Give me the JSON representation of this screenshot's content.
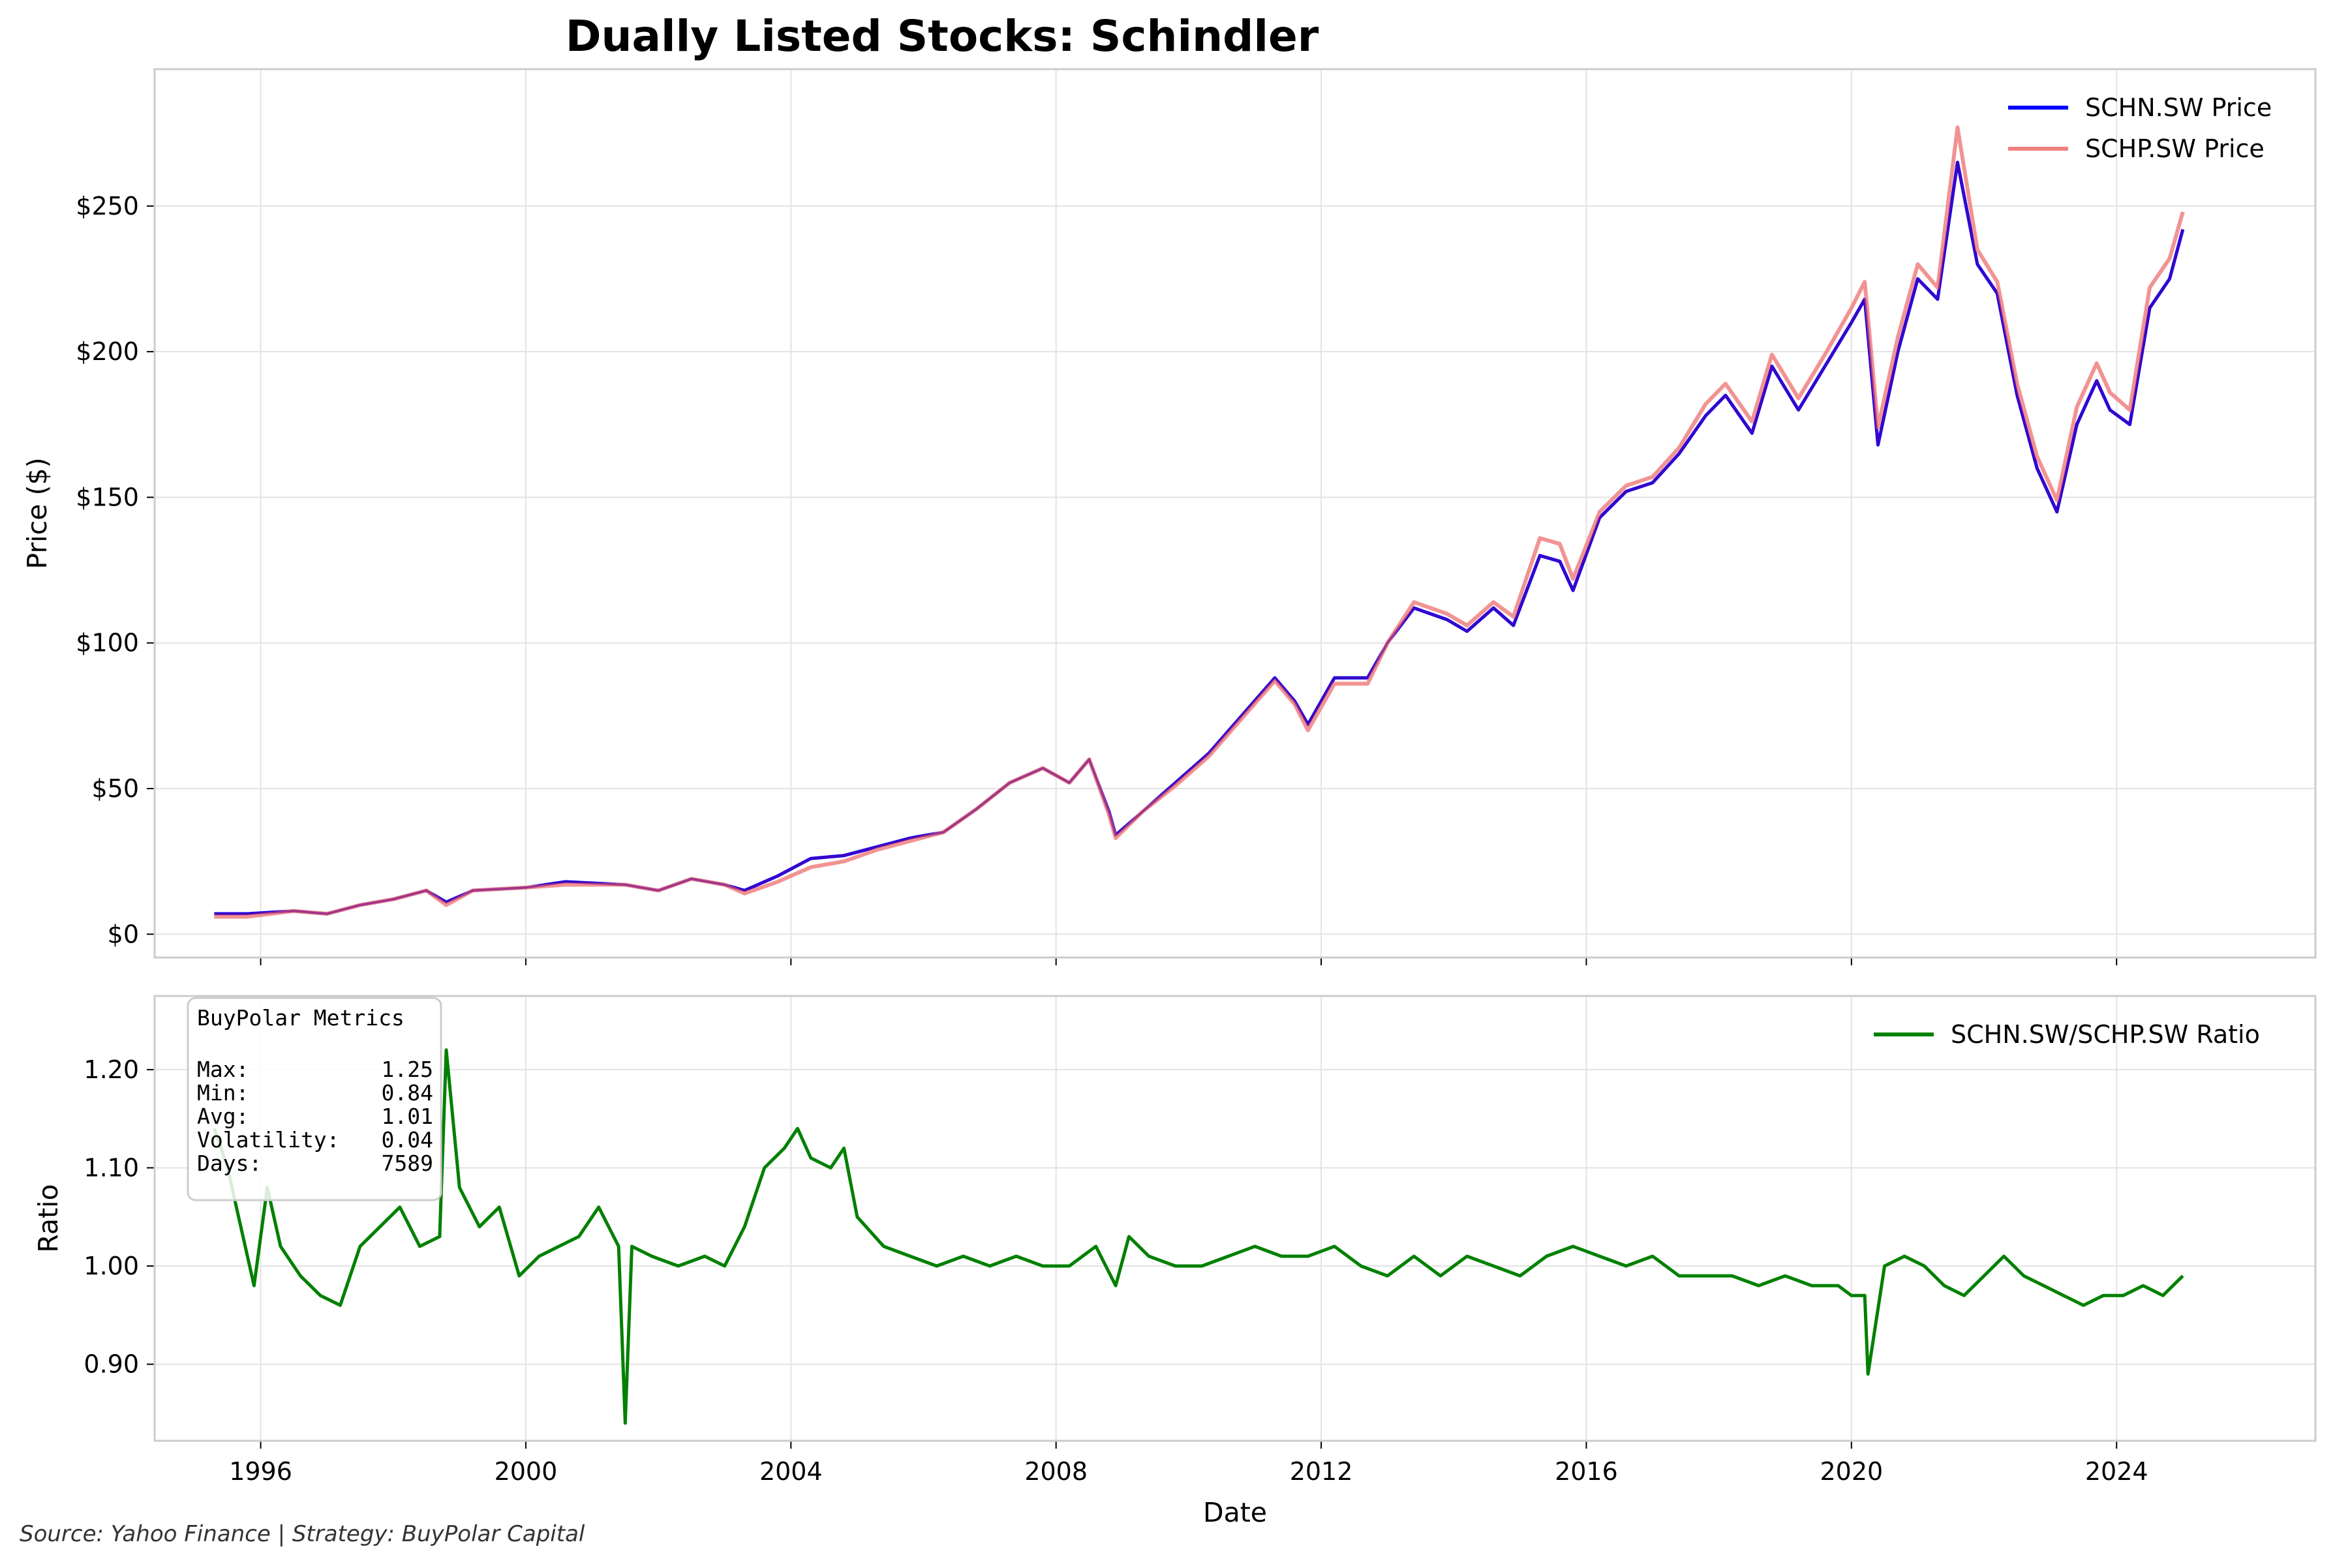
{
  "title": "Dually Listed Stocks: Schindler",
  "footer": "Source: Yahoo Finance | Strategy: BuyPolar Capital",
  "colors": {
    "schn": "#0000ff",
    "schp": "#f08080",
    "overlap": "#800080",
    "ratio": "#008000"
  },
  "chart_data": [
    {
      "type": "line",
      "ylabel": "Price ($)",
      "xlim": [
        1994.4,
        2027.0
      ],
      "ylim": [
        -8,
        297
      ],
      "yticks": [
        0,
        50,
        100,
        150,
        200,
        250
      ],
      "ytick_labels": [
        "$0",
        "$50",
        "$100",
        "$150",
        "$200",
        "$250"
      ],
      "grid": true,
      "legend_position": "top-right",
      "series": [
        {
          "name": "SCHN.SW Price",
          "x": [
            1995.3,
            1995.8,
            1996.5,
            1997.0,
            1997.5,
            1998.0,
            1998.5,
            1998.8,
            1999.2,
            2000.0,
            2000.6,
            2001.5,
            2002.0,
            2002.5,
            2003.0,
            2003.3,
            2003.8,
            2004.3,
            2004.8,
            2005.3,
            2005.8,
            2006.3,
            2006.8,
            2007.3,
            2007.8,
            2008.2,
            2008.5,
            2008.8,
            2008.9,
            2009.3,
            2009.8,
            2010.3,
            2010.8,
            2011.3,
            2011.6,
            2011.8,
            2012.2,
            2012.7,
            2013.0,
            2013.4,
            2013.9,
            2014.2,
            2014.6,
            2014.9,
            2015.3,
            2015.6,
            2015.8,
            2016.2,
            2016.6,
            2017.0,
            2017.4,
            2017.8,
            2018.1,
            2018.5,
            2018.8,
            2019.2,
            2019.6,
            2020.0,
            2020.2,
            2020.4,
            2020.7,
            2021.0,
            2021.3,
            2021.6,
            2021.9,
            2022.2,
            2022.5,
            2022.8,
            2023.1,
            2023.4,
            2023.7,
            2023.9,
            2024.2,
            2024.5,
            2024.8,
            2025.0
          ],
          "values": [
            7,
            7,
            8,
            7,
            10,
            12,
            15,
            11,
            15,
            16,
            18,
            17,
            15,
            19,
            17,
            15,
            20,
            26,
            27,
            30,
            33,
            35,
            43,
            52,
            57,
            52,
            60,
            42,
            34,
            42,
            52,
            62,
            75,
            88,
            80,
            72,
            88,
            88,
            100,
            112,
            108,
            104,
            112,
            106,
            130,
            128,
            118,
            143,
            152,
            155,
            165,
            178,
            185,
            172,
            195,
            180,
            195,
            210,
            218,
            168,
            200,
            225,
            218,
            265,
            230,
            220,
            185,
            160,
            145,
            175,
            190,
            180,
            175,
            215,
            225,
            242
          ]
        },
        {
          "name": "SCHP.SW Price",
          "x": [
            1995.3,
            1995.8,
            1996.5,
            1997.0,
            1997.5,
            1998.0,
            1998.5,
            1998.8,
            1999.2,
            2000.0,
            2000.6,
            2001.5,
            2002.0,
            2002.5,
            2003.0,
            2003.3,
            2003.8,
            2004.3,
            2004.8,
            2005.3,
            2005.8,
            2006.3,
            2006.8,
            2007.3,
            2007.8,
            2008.2,
            2008.5,
            2008.8,
            2008.9,
            2009.3,
            2009.8,
            2010.3,
            2010.8,
            2011.3,
            2011.6,
            2011.8,
            2012.2,
            2012.7,
            2013.0,
            2013.4,
            2013.9,
            2014.2,
            2014.6,
            2014.9,
            2015.3,
            2015.6,
            2015.8,
            2016.2,
            2016.6,
            2017.0,
            2017.4,
            2017.8,
            2018.1,
            2018.5,
            2018.8,
            2019.2,
            2019.6,
            2020.0,
            2020.2,
            2020.4,
            2020.7,
            2021.0,
            2021.3,
            2021.6,
            2021.9,
            2022.2,
            2022.5,
            2022.8,
            2023.1,
            2023.4,
            2023.7,
            2023.9,
            2024.2,
            2024.5,
            2024.8,
            2025.0
          ],
          "values": [
            6,
            6,
            8,
            7,
            10,
            12,
            15,
            10,
            15,
            16,
            17,
            17,
            15,
            19,
            17,
            14,
            18,
            23,
            25,
            29,
            32,
            35,
            43,
            52,
            57,
            52,
            60,
            41,
            33,
            42,
            51,
            61,
            74,
            87,
            79,
            70,
            86,
            86,
            100,
            114,
            110,
            106,
            114,
            109,
            136,
            134,
            122,
            145,
            154,
            157,
            167,
            182,
            189,
            176,
            199,
            184,
            199,
            215,
            224,
            174,
            205,
            230,
            222,
            277,
            235,
            224,
            189,
            164,
            149,
            181,
            196,
            186,
            180,
            222,
            232,
            248
          ]
        }
      ]
    },
    {
      "type": "line",
      "xlabel": "Date",
      "ylabel": "Ratio",
      "xlim": [
        1994.4,
        2027.0
      ],
      "ylim": [
        0.822,
        1.275
      ],
      "yticks": [
        0.9,
        1.0,
        1.1,
        1.2
      ],
      "ytick_labels": [
        "0.90",
        "1.00",
        "1.10",
        "1.20"
      ],
      "xticks": [
        1996,
        2000,
        2004,
        2008,
        2012,
        2016,
        2020,
        2024
      ],
      "xtick_labels": [
        "1996",
        "2000",
        "2004",
        "2008",
        "2012",
        "2016",
        "2020",
        "2024"
      ],
      "grid": true,
      "legend_position": "top-right",
      "series": [
        {
          "name": "SCHN.SW/SCHP.SW Ratio",
          "x": [
            1995.3,
            1995.5,
            1995.7,
            1995.9,
            1996.1,
            1996.3,
            1996.6,
            1996.9,
            1997.2,
            1997.5,
            1997.8,
            1998.1,
            1998.4,
            1998.7,
            1998.8,
            1999.0,
            1999.3,
            1999.6,
            1999.9,
            2000.2,
            2000.5,
            2000.8,
            2001.1,
            2001.4,
            2001.5,
            2001.6,
            2001.9,
            2002.3,
            2002.7,
            2003.0,
            2003.3,
            2003.6,
            2003.9,
            2004.1,
            2004.3,
            2004.6,
            2004.8,
            2005.0,
            2005.4,
            2005.8,
            2006.2,
            2006.6,
            2007.0,
            2007.4,
            2007.8,
            2008.2,
            2008.6,
            2008.9,
            2009.1,
            2009.4,
            2009.8,
            2010.2,
            2010.6,
            2011.0,
            2011.4,
            2011.8,
            2012.2,
            2012.6,
            2013.0,
            2013.4,
            2013.8,
            2014.2,
            2014.6,
            2015.0,
            2015.4,
            2015.8,
            2016.2,
            2016.6,
            2017.0,
            2017.4,
            2017.8,
            2018.2,
            2018.6,
            2019.0,
            2019.4,
            2019.8,
            2020.0,
            2020.2,
            2020.25,
            2020.5,
            2020.8,
            2021.1,
            2021.4,
            2021.7,
            2022.0,
            2022.3,
            2022.6,
            2022.9,
            2023.2,
            2023.5,
            2023.8,
            2024.1,
            2024.4,
            2024.7,
            2025.0
          ],
          "values": [
            1.14,
            1.1,
            1.04,
            0.98,
            1.08,
            1.02,
            0.99,
            0.97,
            0.96,
            1.02,
            1.04,
            1.06,
            1.02,
            1.03,
            1.22,
            1.08,
            1.04,
            1.06,
            0.99,
            1.01,
            1.02,
            1.03,
            1.06,
            1.02,
            0.84,
            1.02,
            1.01,
            1.0,
            1.01,
            1.0,
            1.04,
            1.1,
            1.12,
            1.14,
            1.11,
            1.1,
            1.12,
            1.05,
            1.02,
            1.01,
            1.0,
            1.01,
            1.0,
            1.01,
            1.0,
            1.0,
            1.02,
            0.98,
            1.03,
            1.01,
            1.0,
            1.0,
            1.01,
            1.02,
            1.01,
            1.01,
            1.02,
            1.0,
            0.99,
            1.01,
            0.99,
            1.01,
            1.0,
            0.99,
            1.01,
            1.02,
            1.01,
            1.0,
            1.01,
            0.99,
            0.99,
            0.99,
            0.98,
            0.99,
            0.98,
            0.98,
            0.97,
            0.97,
            0.89,
            1.0,
            1.01,
            1.0,
            0.98,
            0.97,
            0.99,
            1.01,
            0.99,
            0.98,
            0.97,
            0.96,
            0.97,
            0.97,
            0.98,
            0.97,
            0.99
          ]
        }
      ],
      "metrics_box": {
        "title": "BuyPolar Metrics",
        "rows": [
          {
            "label": "Max:",
            "value": "1.25"
          },
          {
            "label": "Min:",
            "value": "0.84"
          },
          {
            "label": "Avg:",
            "value": "1.01"
          },
          {
            "label": "Volatility:",
            "value": "0.04"
          },
          {
            "label": "Days:",
            "value": "7589"
          }
        ]
      }
    }
  ]
}
